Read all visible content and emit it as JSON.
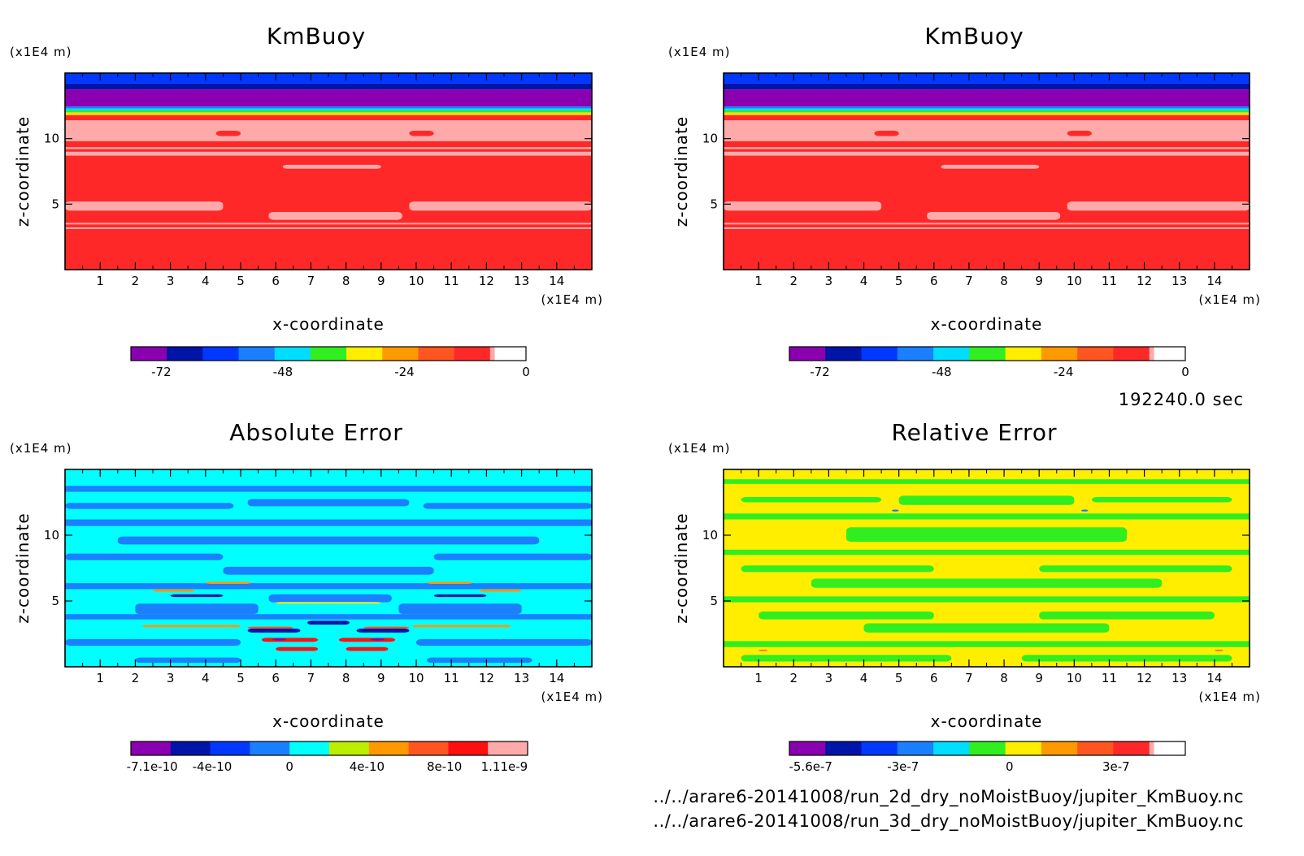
{
  "footer": {
    "time": "192240.0 sec",
    "files": [
      "../../arare6-20141008/run_2d_dry_noMoistBuoy/jupiter_KmBuoy.nc",
      "../../arare6-20141008/run_3d_dry_noMoistBuoy/jupiter_KmBuoy.nc"
    ]
  },
  "chart_data": [
    {
      "type": "heatmap",
      "title": "KmBuoy",
      "xlabel": "x-coordinate",
      "ylabel": "z-coordinate",
      "x_unit": "(x1E4 m)",
      "y_unit": "(x1E4 m)",
      "xlim": [
        0,
        15
      ],
      "ylim": [
        0,
        15
      ],
      "x_ticks": [
        1,
        2,
        3,
        4,
        5,
        6,
        7,
        8,
        9,
        10,
        11,
        12,
        13,
        14
      ],
      "y_ticks": [
        5,
        10
      ],
      "colorbar": {
        "colors": [
          "#8a00b0",
          "#0014a8",
          "#0038ff",
          "#1a80ff",
          "#00ddff",
          "#30ee20",
          "#ffee00",
          "#ff9900",
          "#ff5520",
          "#ff2828",
          "#ffaaaa"
        ],
        "tick_labels": [
          "-72",
          "-48",
          "-24",
          "0"
        ],
        "tick_values": [
          -72,
          -48,
          -24,
          0
        ],
        "range": [
          -78,
          0
        ]
      },
      "pattern": "km",
      "cells": [
        {
          "color": "#ff2828",
          "x": 0,
          "y": 0,
          "w": 15,
          "h": 11.8
        },
        {
          "color": "#ffaaaa",
          "x": 0,
          "y": 3.1,
          "w": 15,
          "h": 0.13
        },
        {
          "color": "#ffaaaa",
          "x": 0,
          "y": 3.45,
          "w": 15,
          "h": 0.12
        },
        {
          "color": "#ffaaaa",
          "x": 0,
          "y": 9.2,
          "w": 15,
          "h": 0.15
        },
        {
          "color": "#ffaaaa",
          "x": 0,
          "y": 9.8,
          "w": 15,
          "h": 1.6
        },
        {
          "color": "#ff2828",
          "x": 4.3,
          "y": 10.2,
          "w": 0.7,
          "h": 0.4
        },
        {
          "color": "#ff2828",
          "x": 9.8,
          "y": 10.2,
          "w": 0.7,
          "h": 0.4
        },
        {
          "color": "#ffaaaa",
          "x": 0,
          "y": 8.7,
          "w": 15,
          "h": 0.3
        },
        {
          "color": "#ffaaaa",
          "x": 6.2,
          "y": 7.7,
          "w": 2.8,
          "h": 0.3
        },
        {
          "color": "#ffaaaa",
          "x": 0,
          "y": 4.5,
          "w": 4.5,
          "h": 0.7
        },
        {
          "color": "#ffaaaa",
          "x": 9.8,
          "y": 4.5,
          "w": 5.2,
          "h": 0.7
        },
        {
          "color": "#ffaaaa",
          "x": 5.8,
          "y": 3.8,
          "w": 3.8,
          "h": 0.6
        },
        {
          "color": "#ffdd00",
          "x": 0,
          "y": 11.8,
          "w": 15,
          "h": 0.2
        },
        {
          "color": "#30ee20",
          "x": 0,
          "y": 12.0,
          "w": 15,
          "h": 0.15
        },
        {
          "color": "#00ddff",
          "x": 0,
          "y": 12.15,
          "w": 15,
          "h": 0.15
        },
        {
          "color": "#1a80ff",
          "x": 0,
          "y": 12.3,
          "w": 15,
          "h": 0.15
        },
        {
          "color": "#8a00b0",
          "x": 0,
          "y": 12.45,
          "w": 15,
          "h": 1.3
        },
        {
          "color": "#0014a8",
          "x": 0,
          "y": 13.75,
          "w": 15,
          "h": 0.45
        },
        {
          "color": "#0038ff",
          "x": 0,
          "y": 14.2,
          "w": 15,
          "h": 0.8
        }
      ]
    },
    {
      "type": "heatmap",
      "title": "KmBuoy",
      "xlabel": "x-coordinate",
      "ylabel": "z-coordinate",
      "x_unit": "(x1E4 m)",
      "y_unit": "(x1E4 m)",
      "xlim": [
        0,
        15
      ],
      "ylim": [
        0,
        15
      ],
      "x_ticks": [
        1,
        2,
        3,
        4,
        5,
        6,
        7,
        8,
        9,
        10,
        11,
        12,
        13,
        14
      ],
      "y_ticks": [
        5,
        10
      ],
      "colorbar": {
        "colors": [
          "#8a00b0",
          "#0014a8",
          "#0038ff",
          "#1a80ff",
          "#00ddff",
          "#30ee20",
          "#ffee00",
          "#ff9900",
          "#ff5520",
          "#ff2828",
          "#ffaaaa"
        ],
        "tick_labels": [
          "-72",
          "-48",
          "-24",
          "0"
        ],
        "tick_values": [
          -72,
          -48,
          -24,
          0
        ],
        "range": [
          -78,
          0
        ]
      },
      "pattern": "km",
      "cells": [
        {
          "color": "#ff2828",
          "x": 0,
          "y": 0,
          "w": 15,
          "h": 11.8
        },
        {
          "color": "#ffaaaa",
          "x": 0,
          "y": 3.1,
          "w": 15,
          "h": 0.13
        },
        {
          "color": "#ffaaaa",
          "x": 0,
          "y": 3.45,
          "w": 15,
          "h": 0.12
        },
        {
          "color": "#ffaaaa",
          "x": 0,
          "y": 9.2,
          "w": 15,
          "h": 0.15
        },
        {
          "color": "#ffaaaa",
          "x": 0,
          "y": 9.8,
          "w": 15,
          "h": 1.6
        },
        {
          "color": "#ff2828",
          "x": 4.3,
          "y": 10.2,
          "w": 0.7,
          "h": 0.4
        },
        {
          "color": "#ff2828",
          "x": 9.8,
          "y": 10.2,
          "w": 0.7,
          "h": 0.4
        },
        {
          "color": "#ffaaaa",
          "x": 0,
          "y": 8.7,
          "w": 15,
          "h": 0.3
        },
        {
          "color": "#ffaaaa",
          "x": 6.2,
          "y": 7.7,
          "w": 2.8,
          "h": 0.3
        },
        {
          "color": "#ffaaaa",
          "x": 0,
          "y": 4.5,
          "w": 4.5,
          "h": 0.7
        },
        {
          "color": "#ffaaaa",
          "x": 9.8,
          "y": 4.5,
          "w": 5.2,
          "h": 0.7
        },
        {
          "color": "#ffaaaa",
          "x": 5.8,
          "y": 3.8,
          "w": 3.8,
          "h": 0.6
        },
        {
          "color": "#ffdd00",
          "x": 0,
          "y": 11.8,
          "w": 15,
          "h": 0.2
        },
        {
          "color": "#30ee20",
          "x": 0,
          "y": 12.0,
          "w": 15,
          "h": 0.15
        },
        {
          "color": "#00ddff",
          "x": 0,
          "y": 12.15,
          "w": 15,
          "h": 0.15
        },
        {
          "color": "#1a80ff",
          "x": 0,
          "y": 12.3,
          "w": 15,
          "h": 0.15
        },
        {
          "color": "#8a00b0",
          "x": 0,
          "y": 12.45,
          "w": 15,
          "h": 1.3
        },
        {
          "color": "#0014a8",
          "x": 0,
          "y": 13.75,
          "w": 15,
          "h": 0.45
        },
        {
          "color": "#0038ff",
          "x": 0,
          "y": 14.2,
          "w": 15,
          "h": 0.8
        }
      ]
    },
    {
      "type": "heatmap",
      "title": "Absolute Error",
      "xlabel": "x-coordinate",
      "ylabel": "z-coordinate",
      "x_unit": "(x1E4 m)",
      "y_unit": "(x1E4 m)",
      "xlim": [
        0,
        15
      ],
      "ylim": [
        0,
        15
      ],
      "x_ticks": [
        1,
        2,
        3,
        4,
        5,
        6,
        7,
        8,
        9,
        10,
        11,
        12,
        13,
        14
      ],
      "y_ticks": [
        5,
        10
      ],
      "colorbar": {
        "colors": [
          "#8a00b0",
          "#0014a8",
          "#0038ff",
          "#1a80ff",
          "#00ffff",
          "#bbee00",
          "#ff9900",
          "#ff5520",
          "#ff1010",
          "#ffaaaa"
        ],
        "tick_labels": [
          "-7.1e-10",
          "-4e-10",
          "0",
          "4e-10",
          "8e-10",
          "1.11e-9"
        ],
        "tick_values": [
          -7.1e-10,
          -4e-10,
          0,
          4e-10,
          8e-10,
          1.11e-09
        ],
        "range": [
          -8.2e-10,
          1.23e-09
        ]
      },
      "pattern": "abs",
      "cells": [
        {
          "color": "#00ffff",
          "x": 0,
          "y": 0,
          "w": 15,
          "h": 15
        },
        {
          "color": "#1a80ff",
          "x": 0,
          "y": 13.3,
          "w": 15,
          "h": 0.45
        },
        {
          "color": "#1a80ff",
          "x": 0,
          "y": 12.0,
          "w": 4.8,
          "h": 0.45
        },
        {
          "color": "#1a80ff",
          "x": 5.2,
          "y": 12.2,
          "w": 4.6,
          "h": 0.55
        },
        {
          "color": "#1a80ff",
          "x": 10.2,
          "y": 12.0,
          "w": 4.8,
          "h": 0.45
        },
        {
          "color": "#1a80ff",
          "x": 0,
          "y": 10.7,
          "w": 15,
          "h": 0.5
        },
        {
          "color": "#1a80ff",
          "x": 1.5,
          "y": 9.3,
          "w": 12.0,
          "h": 0.6
        },
        {
          "color": "#1a80ff",
          "x": 0,
          "y": 8.1,
          "w": 4.5,
          "h": 0.5
        },
        {
          "color": "#1a80ff",
          "x": 10.5,
          "y": 8.1,
          "w": 4.5,
          "h": 0.5
        },
        {
          "color": "#1a80ff",
          "x": 4.5,
          "y": 7.0,
          "w": 6.0,
          "h": 0.6
        },
        {
          "color": "#1a80ff",
          "x": 0,
          "y": 5.9,
          "w": 15,
          "h": 0.45
        },
        {
          "color": "#1a80ff",
          "x": 5.8,
          "y": 4.9,
          "w": 3.5,
          "h": 0.6
        },
        {
          "color": "#1a80ff",
          "x": 0,
          "y": 3.6,
          "w": 15,
          "h": 0.4
        },
        {
          "color": "#1a80ff",
          "x": 0,
          "y": 1.6,
          "w": 5.0,
          "h": 0.5
        },
        {
          "color": "#1a80ff",
          "x": 10.0,
          "y": 1.6,
          "w": 5.0,
          "h": 0.5
        },
        {
          "color": "#1a80ff",
          "x": 2.0,
          "y": 0.3,
          "w": 3.0,
          "h": 0.4
        },
        {
          "color": "#1a80ff",
          "x": 10.3,
          "y": 0.3,
          "w": 3.0,
          "h": 0.4
        },
        {
          "color": "#1a80ff",
          "x": 2.0,
          "y": 4.0,
          "w": 3.5,
          "h": 0.8
        },
        {
          "color": "#1a80ff",
          "x": 9.5,
          "y": 4.0,
          "w": 3.5,
          "h": 0.8
        },
        {
          "color": "#ff9900",
          "x": 2.5,
          "y": 5.7,
          "w": 1.2,
          "h": 0.18
        },
        {
          "color": "#ff9900",
          "x": 4.0,
          "y": 6.3,
          "w": 1.3,
          "h": 0.16
        },
        {
          "color": "#ff9900",
          "x": 10.3,
          "y": 6.3,
          "w": 1.3,
          "h": 0.16
        },
        {
          "color": "#ff9900",
          "x": 11.8,
          "y": 5.7,
          "w": 1.2,
          "h": 0.18
        },
        {
          "color": "#ffee00",
          "x": 6.0,
          "y": 4.8,
          "w": 3.0,
          "h": 0.12
        },
        {
          "color": "#ff9900",
          "x": 2.2,
          "y": 3.0,
          "w": 2.8,
          "h": 0.18
        },
        {
          "color": "#ff9900",
          "x": 9.9,
          "y": 3.0,
          "w": 2.8,
          "h": 0.18
        },
        {
          "color": "#0014a8",
          "x": 3.0,
          "y": 5.3,
          "w": 1.5,
          "h": 0.2
        },
        {
          "color": "#0014a8",
          "x": 10.5,
          "y": 5.3,
          "w": 1.5,
          "h": 0.2
        },
        {
          "color": "#0014a8",
          "x": 5.2,
          "y": 2.6,
          "w": 1.5,
          "h": 0.3
        },
        {
          "color": "#0014a8",
          "x": 8.3,
          "y": 2.6,
          "w": 1.5,
          "h": 0.3
        },
        {
          "color": "#0014a8",
          "x": 6.9,
          "y": 3.2,
          "w": 1.2,
          "h": 0.3
        },
        {
          "color": "#ff1010",
          "x": 5.6,
          "y": 1.9,
          "w": 1.6,
          "h": 0.3
        },
        {
          "color": "#ff1010",
          "x": 7.8,
          "y": 1.9,
          "w": 1.6,
          "h": 0.3
        },
        {
          "color": "#ff1010",
          "x": 6.0,
          "y": 1.2,
          "w": 1.2,
          "h": 0.3
        },
        {
          "color": "#ff1010",
          "x": 8.0,
          "y": 1.2,
          "w": 1.2,
          "h": 0.3
        },
        {
          "color": "#8a00b0",
          "x": 5.9,
          "y": 2.0,
          "w": 0.4,
          "h": 0.15
        },
        {
          "color": "#8a00b0",
          "x": 8.7,
          "y": 2.0,
          "w": 0.4,
          "h": 0.15
        },
        {
          "color": "#ff5520",
          "x": 5.2,
          "y": 2.9,
          "w": 1.3,
          "h": 0.15
        },
        {
          "color": "#ff5520",
          "x": 8.5,
          "y": 2.9,
          "w": 1.3,
          "h": 0.15
        }
      ]
    },
    {
      "type": "heatmap",
      "title": "Relative Error",
      "xlabel": "x-coordinate",
      "ylabel": "z-coordinate",
      "x_unit": "(x1E4 m)",
      "y_unit": "(x1E4 m)",
      "xlim": [
        0,
        15
      ],
      "ylim": [
        0,
        15
      ],
      "x_ticks": [
        1,
        2,
        3,
        4,
        5,
        6,
        7,
        8,
        9,
        10,
        11,
        12,
        13,
        14
      ],
      "y_ticks": [
        5,
        10
      ],
      "colorbar": {
        "colors": [
          "#8a00b0",
          "#0014a8",
          "#0038ff",
          "#1a80ff",
          "#00ddff",
          "#30ee20",
          "#ffee00",
          "#ff9900",
          "#ff5520",
          "#ff2828",
          "#ffaaaa"
        ],
        "tick_labels": [
          "-5.6e-7",
          "-3e-7",
          "0",
          "3e-7"
        ],
        "tick_values": [
          -5.6e-07,
          -3e-07,
          0,
          3e-07
        ],
        "range": [
          -6.2e-07,
          4.95e-07
        ]
      },
      "pattern": "rel",
      "cells": [
        {
          "color": "#ffee00",
          "x": 0,
          "y": 0,
          "w": 15,
          "h": 15
        },
        {
          "color": "#30ee20",
          "x": 0,
          "y": 13.9,
          "w": 15,
          "h": 0.35
        },
        {
          "color": "#30ee20",
          "x": 0.5,
          "y": 12.5,
          "w": 4.0,
          "h": 0.4
        },
        {
          "color": "#30ee20",
          "x": 5.0,
          "y": 12.3,
          "w": 5.0,
          "h": 0.7
        },
        {
          "color": "#30ee20",
          "x": 10.5,
          "y": 12.5,
          "w": 4.0,
          "h": 0.4
        },
        {
          "color": "#30ee20",
          "x": 0,
          "y": 11.2,
          "w": 15,
          "h": 0.45
        },
        {
          "color": "#30ee20",
          "x": 3.5,
          "y": 9.5,
          "w": 8.0,
          "h": 1.1
        },
        {
          "color": "#30ee20",
          "x": 0,
          "y": 8.5,
          "w": 15,
          "h": 0.4
        },
        {
          "color": "#30ee20",
          "x": 0.5,
          "y": 7.2,
          "w": 5.5,
          "h": 0.5
        },
        {
          "color": "#30ee20",
          "x": 9.0,
          "y": 7.2,
          "w": 5.5,
          "h": 0.5
        },
        {
          "color": "#30ee20",
          "x": 2.5,
          "y": 6.0,
          "w": 10.0,
          "h": 0.7
        },
        {
          "color": "#30ee20",
          "x": 0,
          "y": 4.9,
          "w": 15,
          "h": 0.45
        },
        {
          "color": "#30ee20",
          "x": 1.0,
          "y": 3.6,
          "w": 5.0,
          "h": 0.6
        },
        {
          "color": "#30ee20",
          "x": 9.0,
          "y": 3.6,
          "w": 5.0,
          "h": 0.6
        },
        {
          "color": "#30ee20",
          "x": 4.0,
          "y": 2.6,
          "w": 7.0,
          "h": 0.7
        },
        {
          "color": "#30ee20",
          "x": 0,
          "y": 1.5,
          "w": 15,
          "h": 0.45
        },
        {
          "color": "#30ee20",
          "x": 0.5,
          "y": 0.4,
          "w": 6.0,
          "h": 0.5
        },
        {
          "color": "#30ee20",
          "x": 8.5,
          "y": 0.4,
          "w": 6.0,
          "h": 0.5
        },
        {
          "color": "#1a80ff",
          "x": 4.8,
          "y": 11.8,
          "w": 0.2,
          "h": 0.15
        },
        {
          "color": "#1a80ff",
          "x": 10.2,
          "y": 11.8,
          "w": 0.2,
          "h": 0.15
        },
        {
          "color": "#ff5520",
          "x": 1.0,
          "y": 1.2,
          "w": 0.25,
          "h": 0.1
        },
        {
          "color": "#ff5520",
          "x": 14.0,
          "y": 1.2,
          "w": 0.25,
          "h": 0.1
        }
      ]
    }
  ]
}
